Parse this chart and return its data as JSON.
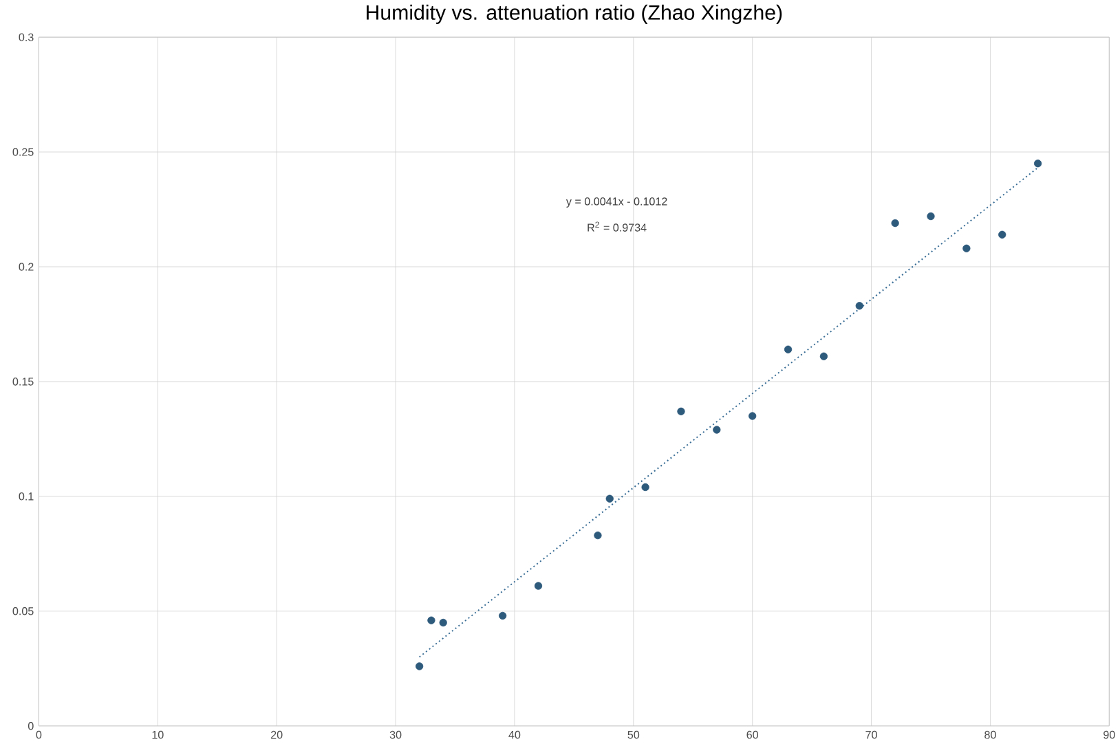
{
  "chart_data": {
    "type": "scatter",
    "title": "Humidity vs. attenuation ratio  (Zhao Xingzhe)",
    "xlim": [
      0,
      90
    ],
    "xticks": [
      0,
      10,
      20,
      30,
      40,
      50,
      60,
      70,
      80,
      90
    ],
    "ylim": [
      0,
      0.3
    ],
    "yticks": [
      0,
      0.05,
      0.1,
      0.15,
      0.2,
      0.25,
      0.3
    ],
    "grid": true,
    "annotations": [
      "y = 0.0041x - 0.1012",
      "R$^{2}$ = 0.9734"
    ],
    "series": [
      {
        "color": "#2e5a7c",
        "marker": "circle",
        "x": [
          32,
          33,
          34,
          39,
          42,
          47,
          48,
          51,
          54,
          57,
          60,
          63,
          66,
          69,
          72,
          75,
          78,
          81,
          84
        ],
        "values": [
          0.026,
          0.046,
          0.045,
          0.048,
          0.061,
          0.083,
          0.099,
          0.104,
          0.137,
          0.129,
          0.135,
          0.164,
          0.161,
          0.183,
          0.219,
          0.222,
          0.208,
          0.214,
          0.245
        ]
      },
      {
        "type": "line",
        "color": "#3a6e96",
        "marker": "none",
        "line_style": "dotted",
        "x": [
          32,
          84
        ],
        "values": [
          0.03,
          0.2432
        ]
      }
    ]
  }
}
